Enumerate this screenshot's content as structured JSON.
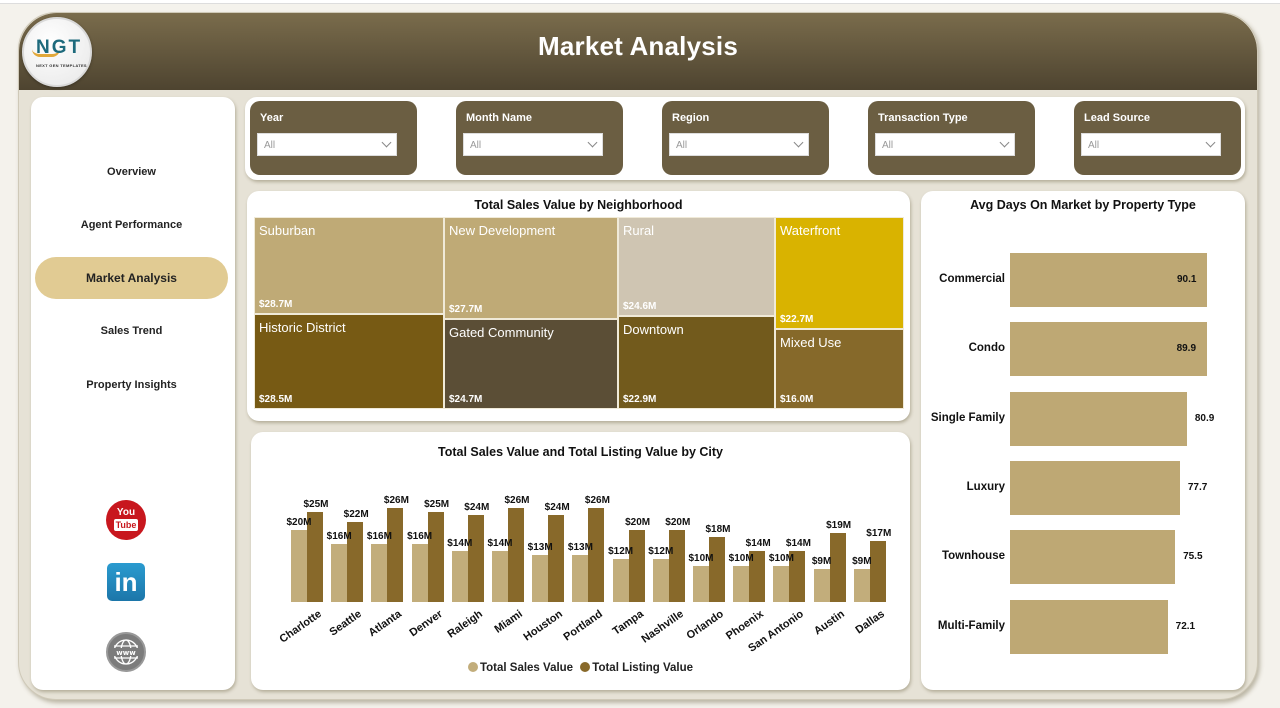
{
  "header": {
    "title": "Market Analysis",
    "logo": {
      "text": "NGT",
      "subtitle": "NEXT GEN TEMPLATES"
    }
  },
  "sidebar": {
    "items": [
      {
        "label": "Overview",
        "active": false
      },
      {
        "label": "Agent Performance",
        "active": false
      },
      {
        "label": "Market Analysis",
        "active": true
      },
      {
        "label": "Sales Trend",
        "active": false
      },
      {
        "label": "Property Insights",
        "active": false
      }
    ],
    "social": [
      {
        "icon": "youtube-icon",
        "text_top": "You",
        "text_bottom": "Tube"
      },
      {
        "icon": "linkedin-icon",
        "text": "in"
      },
      {
        "icon": "globe-www-icon",
        "text": "www"
      }
    ]
  },
  "filters": [
    {
      "label": "Year",
      "value": "All"
    },
    {
      "label": "Month Name",
      "value": "All"
    },
    {
      "label": "Region",
      "value": "All"
    },
    {
      "label": "Transaction Type",
      "value": "All"
    },
    {
      "label": "Lead Source",
      "value": "All"
    }
  ],
  "colors": {
    "header_top": "#7a6c4c",
    "header_bottom": "#4e4430",
    "filter_bg": "#6b5e42",
    "active_nav": "#e1cb93",
    "sales_value": "#c2ad7b",
    "listing_value": "#88692a",
    "avg_days_bar": "#bea874"
  },
  "treemap": {
    "title": "Total Sales Value by Neighborhood",
    "tiles": [
      {
        "name": "Suburban",
        "value": "$28.7M",
        "color": "#bfaa76"
      },
      {
        "name": "Historic District",
        "value": "$28.5M",
        "color": "#775a14"
      },
      {
        "name": "New Development",
        "value": "$27.7M",
        "color": "#bfaa76"
      },
      {
        "name": "Gated Community",
        "value": "$24.7M",
        "color": "#5b4e36"
      },
      {
        "name": "Rural",
        "value": "$24.6M",
        "color": "#cfc5b2"
      },
      {
        "name": "Downtown",
        "value": "$22.9M",
        "color": "#725a1c"
      },
      {
        "name": "Waterfront",
        "value": "$22.7M",
        "color": "#d9b300"
      },
      {
        "name": "Mixed Use",
        "value": "$16.0M",
        "color": "#86692a"
      }
    ]
  },
  "city_chart": {
    "title": "Total Sales Value and Total Listing Value by City",
    "legend": [
      "Total Sales Value",
      "Total Listing Value"
    ],
    "cities": [
      {
        "city": "Charlotte",
        "sales": "$20M",
        "listing": "$25M"
      },
      {
        "city": "Seattle",
        "sales": "$16M",
        "listing": "$22M"
      },
      {
        "city": "Atlanta",
        "sales": "$16M",
        "listing": "$26M"
      },
      {
        "city": "Denver",
        "sales": "$16M",
        "listing": "$25M"
      },
      {
        "city": "Raleigh",
        "sales": "$14M",
        "listing": "$24M"
      },
      {
        "city": "Miami",
        "sales": "$14M",
        "listing": "$26M"
      },
      {
        "city": "Houston",
        "sales": "$13M",
        "listing": "$24M"
      },
      {
        "city": "Portland",
        "sales": "$13M",
        "listing": "$26M"
      },
      {
        "city": "Tampa",
        "sales": "$12M",
        "listing": "$20M"
      },
      {
        "city": "Nashville",
        "sales": "$12M",
        "listing": "$20M"
      },
      {
        "city": "Orlando",
        "sales": "$10M",
        "listing": "$18M"
      },
      {
        "city": "Phoenix",
        "sales": "$10M",
        "listing": "$14M"
      },
      {
        "city": "San Antonio",
        "sales": "$10M",
        "listing": "$14M"
      },
      {
        "city": "Austin",
        "sales": "$9M",
        "listing": "$19M"
      },
      {
        "city": "Dallas",
        "sales": "$9M",
        "listing": "$17M"
      }
    ]
  },
  "days_chart": {
    "title": "Avg Days On Market by Property Type",
    "rows": [
      {
        "type": "Commercial",
        "value": "90.1"
      },
      {
        "type": "Condo",
        "value": "89.9"
      },
      {
        "type": "Single Family",
        "value": "80.9"
      },
      {
        "type": "Luxury",
        "value": "77.7"
      },
      {
        "type": "Townhouse",
        "value": "75.5"
      },
      {
        "type": "Multi-Family",
        "value": "72.1"
      }
    ]
  },
  "chart_data": [
    {
      "type": "treemap",
      "title": "Total Sales Value by Neighborhood",
      "categories": [
        "Suburban",
        "Historic District",
        "New Development",
        "Gated Community",
        "Rural",
        "Downtown",
        "Waterfront",
        "Mixed Use"
      ],
      "values": [
        28.7,
        28.5,
        27.7,
        24.7,
        24.6,
        22.9,
        22.7,
        16.0
      ],
      "unit": "$M"
    },
    {
      "type": "bar",
      "title": "Total Sales Value and Total Listing Value by City",
      "categories": [
        "Charlotte",
        "Seattle",
        "Atlanta",
        "Denver",
        "Raleigh",
        "Miami",
        "Houston",
        "Portland",
        "Tampa",
        "Nashville",
        "Orlando",
        "Phoenix",
        "San Antonio",
        "Austin",
        "Dallas"
      ],
      "series": [
        {
          "name": "Total Sales Value",
          "values": [
            20,
            16,
            16,
            16,
            14,
            14,
            13,
            13,
            12,
            12,
            10,
            10,
            10,
            9,
            9
          ]
        },
        {
          "name": "Total Listing Value",
          "values": [
            25,
            22,
            26,
            25,
            24,
            26,
            24,
            26,
            20,
            20,
            18,
            14,
            14,
            19,
            17
          ]
        }
      ],
      "unit": "$M",
      "legend_position": "bottom",
      "grid": false
    },
    {
      "type": "bar",
      "orientation": "horizontal",
      "title": "Avg Days On Market by Property Type",
      "categories": [
        "Commercial",
        "Condo",
        "Single Family",
        "Luxury",
        "Townhouse",
        "Multi-Family"
      ],
      "values": [
        90.1,
        89.9,
        80.9,
        77.7,
        75.5,
        72.1
      ],
      "grid": false
    }
  ]
}
